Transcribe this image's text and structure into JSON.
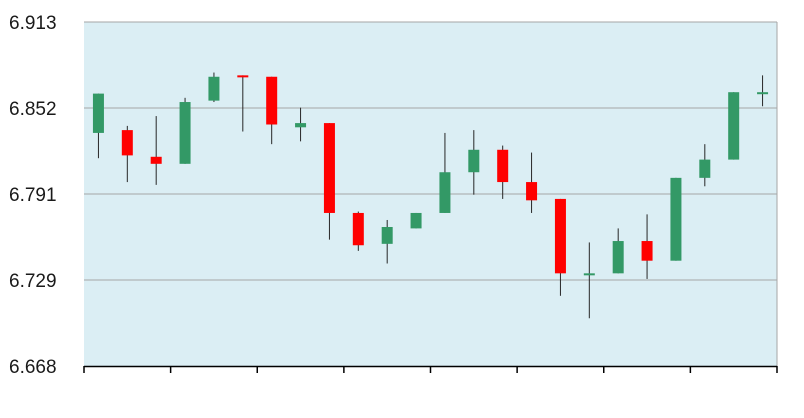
{
  "chart_data": {
    "type": "candlestick",
    "title": "",
    "xlabel": "",
    "ylabel": "",
    "ylim": [
      6.668,
      6.913
    ],
    "y_ticks": [
      "6.913",
      "6.852",
      "6.791",
      "6.729",
      "6.668"
    ],
    "grid": "horizontal",
    "colors": {
      "up": "#339966",
      "down": "#ff0000",
      "plot_bg": "#dbeef4",
      "grid": "#a6a6a6",
      "axis": "#000000",
      "wick": "#262626"
    },
    "candles": [
      {
        "open": 6.834,
        "close": 6.862,
        "high": 6.862,
        "low": 6.816
      },
      {
        "open": 6.836,
        "close": 6.818,
        "high": 6.839,
        "low": 6.799
      },
      {
        "open": 6.817,
        "close": 6.812,
        "high": 6.846,
        "low": 6.797
      },
      {
        "open": 6.812,
        "close": 6.856,
        "high": 6.859,
        "low": 6.812
      },
      {
        "open": 6.857,
        "close": 6.874,
        "high": 6.877,
        "low": 6.856
      },
      {
        "open": 6.875,
        "close": 6.874,
        "high": 6.875,
        "low": 6.835
      },
      {
        "open": 6.874,
        "close": 6.84,
        "high": 6.874,
        "low": 6.826
      },
      {
        "open": 6.838,
        "close": 6.841,
        "high": 6.852,
        "low": 6.828
      },
      {
        "open": 6.841,
        "close": 6.777,
        "high": 6.841,
        "low": 6.758
      },
      {
        "open": 6.777,
        "close": 6.754,
        "high": 6.778,
        "low": 6.75
      },
      {
        "open": 6.755,
        "close": 6.767,
        "high": 6.772,
        "low": 6.741
      },
      {
        "open": 6.766,
        "close": 6.777,
        "high": 6.777,
        "low": 6.766
      },
      {
        "open": 6.777,
        "close": 6.806,
        "high": 6.834,
        "low": 6.777
      },
      {
        "open": 6.806,
        "close": 6.822,
        "high": 6.836,
        "low": 6.79
      },
      {
        "open": 6.822,
        "close": 6.799,
        "high": 6.825,
        "low": 6.787
      },
      {
        "open": 6.799,
        "close": 6.786,
        "high": 6.82,
        "low": 6.777
      },
      {
        "open": 6.787,
        "close": 6.734,
        "high": 6.787,
        "low": 6.718
      },
      {
        "open": 6.734,
        "close": 6.734,
        "high": 6.756,
        "low": 6.702
      },
      {
        "open": 6.734,
        "close": 6.757,
        "high": 6.766,
        "low": 6.734
      },
      {
        "open": 6.757,
        "close": 6.743,
        "high": 6.776,
        "low": 6.73
      },
      {
        "open": 6.743,
        "close": 6.802,
        "high": 6.802,
        "low": 6.743
      },
      {
        "open": 6.802,
        "close": 6.815,
        "high": 6.826,
        "low": 6.796
      },
      {
        "open": 6.815,
        "close": 6.863,
        "high": 6.863,
        "low": 6.815
      },
      {
        "open": 6.863,
        "close": 6.863,
        "high": 6.875,
        "low": 6.853
      }
    ]
  }
}
